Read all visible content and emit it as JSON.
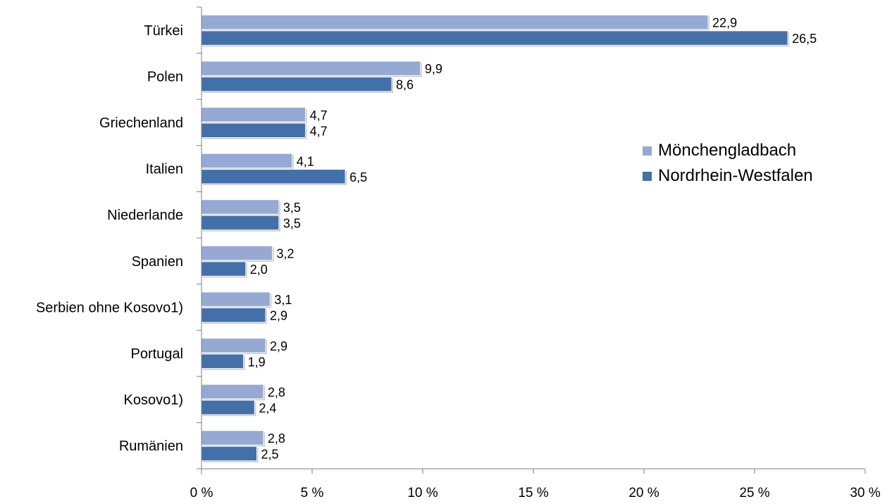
{
  "chart_data": {
    "type": "bar",
    "orientation": "horizontal",
    "categories": [
      "Türkei",
      "Polen",
      "Griechenland",
      "Italien",
      "Niederlande",
      "Spanien",
      "Serbien ohne Kosovo1)",
      "Portugal",
      "Kosovo1)",
      "Rumänien"
    ],
    "series": [
      {
        "name": "Mönchengladbach",
        "color": "#95a9d3",
        "values": [
          22.9,
          9.9,
          4.7,
          4.1,
          3.5,
          3.2,
          3.1,
          2.9,
          2.8,
          2.8
        ],
        "labels": [
          "22,9",
          "9,9",
          "4,7",
          "4,1",
          "3,5",
          "3,2",
          "3,1",
          "2,9",
          "2,8",
          "2,8"
        ]
      },
      {
        "name": "Nordrhein-Westfalen",
        "color": "#4470a9",
        "values": [
          26.5,
          8.6,
          4.7,
          6.5,
          3.5,
          2.0,
          2.9,
          1.9,
          2.4,
          2.5
        ],
        "labels": [
          "26,5",
          "8,6",
          "4,7",
          "6,5",
          "3,5",
          "2,0",
          "2,9",
          "1,9",
          "2,4",
          "2,5"
        ]
      }
    ],
    "xlim": [
      0,
      30
    ],
    "xticks": [
      0,
      5,
      10,
      15,
      20,
      25,
      30
    ],
    "xtick_labels": [
      "0 %",
      "5 %",
      "10 %",
      "15 %",
      "20 %",
      "25 %",
      "30 %"
    ],
    "grid": false,
    "legend_position": "right"
  }
}
